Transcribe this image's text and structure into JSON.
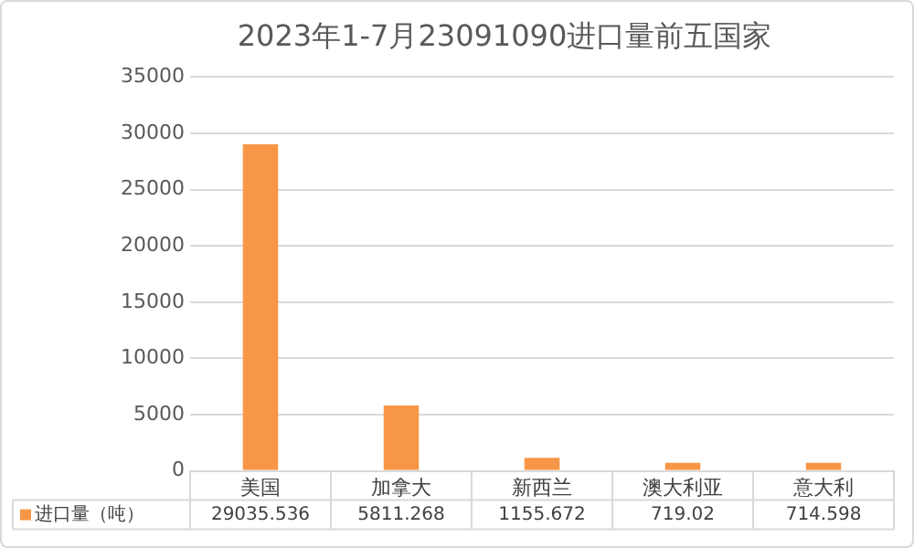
{
  "chart_data": {
    "type": "bar",
    "title": "2023年1-7月23091090进口量前五国家",
    "categories": [
      "美国",
      "加拿大",
      "新西兰",
      "澳大利亚",
      "意大利"
    ],
    "series": [
      {
        "name": "进口量（吨）",
        "color": "#f79646",
        "values": [
          29035.536,
          5811.268,
          1155.672,
          719.02,
          714.598
        ]
      }
    ],
    "ylim": [
      0,
      35000
    ],
    "yticks": [
      0,
      5000,
      10000,
      15000,
      20000,
      25000,
      30000,
      35000
    ],
    "grid": "y",
    "legend": "bottom",
    "data_labels": true
  }
}
